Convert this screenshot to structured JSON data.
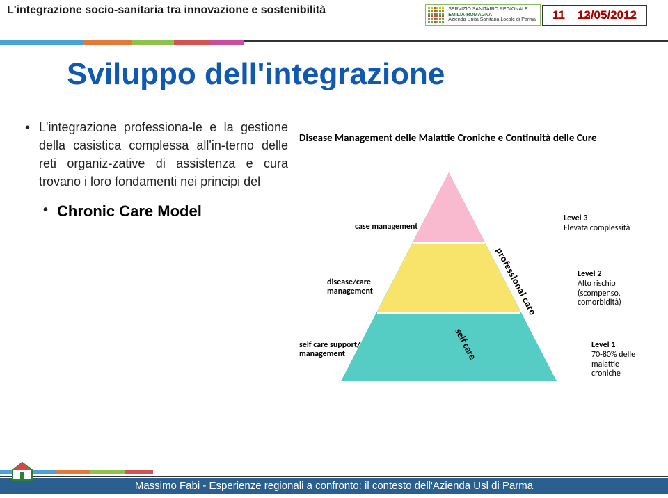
{
  "header": {
    "title": "L'integrazione socio-sanitaria tra innovazione e sostenibilità",
    "logo": {
      "line1": "SERVIZIO SANITARIO REGIONALE",
      "line2": "EMILIA-ROMAGNA",
      "line3": "Azienda Unità Sanitaria Locale di Parma",
      "dot_colors": [
        "#f5b400",
        "#f5b400",
        "#d94545",
        "#f5b400",
        "#f5b400",
        "#f5b400",
        "#6aaa3a",
        "#6aaa3a",
        "#d94545",
        "#6aaa3a",
        "#6aaa3a",
        "#6aaa3a",
        "#6aaa3a",
        "#6aaa3a",
        "#d94545",
        "#6aaa3a",
        "#6aaa3a",
        "#6aaa3a",
        "#d94545",
        "#d94545",
        "#d94545",
        "#d94545",
        "#d94545",
        "#d94545",
        "#6aaa3a",
        "#6aaa3a",
        "#d94545",
        "#6aaa3a",
        "#6aaa3a",
        "#6aaa3a",
        "#6aaa3a",
        "#6aaa3a",
        "#d94545",
        "#6aaa3a",
        "#6aaa3a",
        "#6aaa3a"
      ]
    },
    "page_number": "11",
    "date": "13/05/2012",
    "date_overlay": "12/05/2012",
    "stripe_colors": [
      "#4aa3d8",
      "#e27b3a",
      "#8fc24b",
      "#d4524f",
      "#c74f9c"
    ],
    "stripe_widths": [
      120,
      70,
      60,
      50,
      50
    ]
  },
  "slide": {
    "title": "Sviluppo dell'integrazione",
    "bullet_main": "L'integrazione professiona-le e la gestione della casistica complessa all'in-terno delle reti organiz-zative di assistenza e cura trovano i loro fondamenti nei principi del",
    "bullet_sub": "Chronic Care Model"
  },
  "figure": {
    "title": "Disease Management delle Malattie Croniche e Continuità delle Cure",
    "colors": {
      "base": "#55ccc4",
      "mid": "#f8e46b",
      "top": "#f9b9ce"
    },
    "tier_left_labels": {
      "top": "case management",
      "mid_line1": "disease/care",
      "mid_line2": "management",
      "base_line1": "self care support/",
      "base_line2": "management"
    },
    "curved_labels": {
      "professional": "professional care",
      "self": "self care"
    },
    "levels": {
      "l3_line1": "Level 3",
      "l3_line2": "Elevata complessità",
      "l2_line1": "Level 2",
      "l2_line2": "Alto rischio",
      "l2_line3": "(scompenso,",
      "l2_line4": "comorbidità)",
      "l1_line1": "Level 1",
      "l1_line2": "70-80% delle",
      "l1_line3": "malattie",
      "l1_line4": "croniche"
    }
  },
  "footer": {
    "text": "Massimo Fabi - Esperienze regionali a confronto: il contesto dell'Azienda Usl di Parma",
    "icon_colors": [
      "#d94545",
      "#6aaa3a"
    ],
    "stripe_colors": [
      "#4aa3d8",
      "#e27b3a",
      "#8fc24b",
      "#d4524f"
    ],
    "stripe_widths": [
      80,
      50,
      50,
      40
    ],
    "bar_color": "#2b5f8f"
  }
}
